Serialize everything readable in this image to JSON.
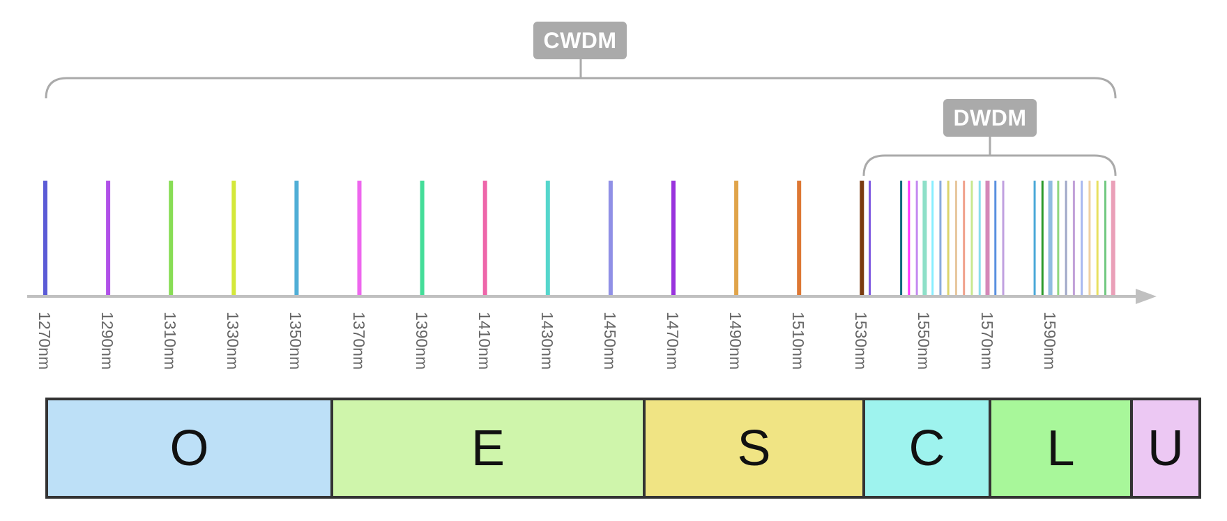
{
  "labels": {
    "cwdm": "CWDM",
    "dwdm": "DWDM"
  },
  "axis_color": "#c0c0c0",
  "bracket_color": "#aaaaaa",
  "cwdm_channels": [
    {
      "nm": 1270,
      "label": "1270nm",
      "color": "#5b5bd6"
    },
    {
      "nm": 1290,
      "label": "1290nm",
      "color": "#b050e8"
    },
    {
      "nm": 1310,
      "label": "1310nm",
      "color": "#88dd55"
    },
    {
      "nm": 1330,
      "label": "1330nm",
      "color": "#d4e83a"
    },
    {
      "nm": 1350,
      "label": "1350nm",
      "color": "#50aed6"
    },
    {
      "nm": 1370,
      "label": "1370nm",
      "color": "#ee66ee"
    },
    {
      "nm": 1390,
      "label": "1390nm",
      "color": "#44dd99"
    },
    {
      "nm": 1410,
      "label": "1410nm",
      "color": "#ee66aa"
    },
    {
      "nm": 1430,
      "label": "1430nm",
      "color": "#55d6cc"
    },
    {
      "nm": 1450,
      "label": "1450nm",
      "color": "#9090e6"
    },
    {
      "nm": 1470,
      "label": "1470nm",
      "color": "#9933dd"
    },
    {
      "nm": 1490,
      "label": "1490nm",
      "color": "#e0a44a"
    },
    {
      "nm": 1510,
      "label": "1510nm",
      "color": "#dd7733"
    }
  ],
  "extra_tick_labels": [
    {
      "nm": 1530,
      "label": "1530nm"
    },
    {
      "nm": 1550,
      "label": "1550nm"
    },
    {
      "nm": 1570,
      "label": "1570nm"
    },
    {
      "nm": 1590,
      "label": "1590nm"
    }
  ],
  "dwdm_channels": [
    {
      "nm": 1530,
      "color": "#7a3b10",
      "thick": true
    },
    {
      "nm": 1532.5,
      "color": "#7b55e0"
    },
    {
      "nm": 1542.5,
      "color": "#0e6a7e"
    },
    {
      "nm": 1545,
      "color": "#ff33ff"
    },
    {
      "nm": 1547.5,
      "color": "#c58af0"
    },
    {
      "nm": 1550,
      "color": "#8ee0c8",
      "thick": true
    },
    {
      "nm": 1552.5,
      "color": "#88eeff"
    },
    {
      "nm": 1555,
      "color": "#88aadd"
    },
    {
      "nm": 1557.5,
      "color": "#dcd46a"
    },
    {
      "nm": 1560,
      "color": "#e8c79e"
    },
    {
      "nm": 1562.5,
      "color": "#f0a08a"
    },
    {
      "nm": 1565,
      "color": "#c8e890"
    },
    {
      "nm": 1567.5,
      "color": "#88ddee"
    },
    {
      "nm": 1570,
      "color": "#d488b8",
      "thick": true
    },
    {
      "nm": 1572.5,
      "color": "#5a90e0"
    },
    {
      "nm": 1575,
      "color": "#c0a0e0"
    },
    {
      "nm": 1585,
      "color": "#4aa8d8"
    },
    {
      "nm": 1587.5,
      "color": "#2a9a2a"
    },
    {
      "nm": 1590,
      "color": "#90bce0",
      "thick": true
    },
    {
      "nm": 1592.5,
      "color": "#90d880"
    },
    {
      "nm": 1595,
      "color": "#a0a8c8"
    },
    {
      "nm": 1597.5,
      "color": "#c0a0d8"
    },
    {
      "nm": 1600,
      "color": "#a8b8f0"
    },
    {
      "nm": 1602.5,
      "color": "#f0d0a0"
    },
    {
      "nm": 1605,
      "color": "#e8e060"
    },
    {
      "nm": 1607.5,
      "color": "#70c880"
    },
    {
      "nm": 1610,
      "color": "#eaa0b8",
      "thick": true
    }
  ],
  "bands": [
    {
      "name": "O",
      "color": "#bde0f7",
      "from": 1260,
      "to": 1360
    },
    {
      "name": "E",
      "color": "#cff5ab",
      "from": 1360,
      "to": 1460
    },
    {
      "name": "S",
      "color": "#f0e484",
      "from": 1460,
      "to": 1530
    },
    {
      "name": "C",
      "color": "#9ef3ee",
      "from": 1530,
      "to": 1565
    },
    {
      "name": "L",
      "color": "#a8f79a",
      "from": 1565,
      "to": 1625
    },
    {
      "name": "U",
      "color": "#ecc8f3",
      "from": 1625,
      "to": 1675
    }
  ]
}
